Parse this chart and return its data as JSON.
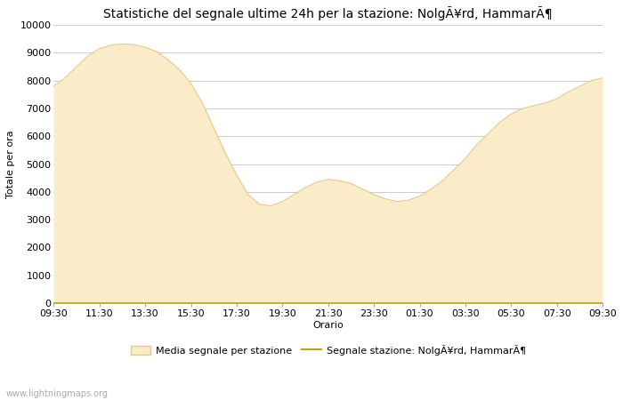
{
  "title": "Statistiche del segnale ultime 24h per la stazione: NolgÃ¥rd, HammarÃ¶",
  "xlabel": "Orario",
  "ylabel": "Totale per ora",
  "ylim": [
    0,
    10000
  ],
  "yticks": [
    0,
    1000,
    2000,
    3000,
    4000,
    5000,
    6000,
    7000,
    8000,
    9000,
    10000
  ],
  "xtick_labels": [
    "09:30",
    "11:30",
    "13:30",
    "15:30",
    "17:30",
    "19:30",
    "21:30",
    "23:30",
    "01:30",
    "03:30",
    "05:30",
    "07:30",
    "09:30"
  ],
  "fill_color": "#FAECC8",
  "fill_edge_color": "#E8C87A",
  "station_line_color": "#C8A000",
  "background_color": "#FFFFFF",
  "grid_color": "#CCCCCC",
  "watermark": "www.lightningmaps.org",
  "legend_fill_label": "Media segnale per stazione",
  "legend_line_label": "Segnale stazione: NolgÃ¥rd, HammarÃ¶",
  "x_values": [
    0,
    1,
    2,
    3,
    4,
    5,
    6,
    7,
    8,
    9,
    10,
    11,
    12,
    13,
    14,
    15,
    16,
    17,
    18,
    19,
    20,
    21,
    22,
    23,
    24,
    25,
    26,
    27,
    28,
    29,
    30,
    31,
    32,
    33,
    34,
    35,
    36,
    37,
    38,
    39,
    40,
    41,
    42,
    43,
    44,
    45,
    46,
    47,
    48
  ],
  "fill_values": [
    7800,
    8100,
    8500,
    8900,
    9150,
    9280,
    9320,
    9300,
    9200,
    9050,
    8750,
    8400,
    7900,
    7200,
    6300,
    5400,
    4600,
    3900,
    3550,
    3500,
    3650,
    3900,
    4150,
    4350,
    4450,
    4400,
    4300,
    4100,
    3900,
    3750,
    3650,
    3700,
    3850,
    4100,
    4400,
    4800,
    5200,
    5700,
    6100,
    6500,
    6800,
    7000,
    7100,
    7200,
    7350,
    7600,
    7800,
    8000,
    8100
  ],
  "station_values": [
    5,
    5,
    5,
    5,
    5,
    5,
    5,
    5,
    5,
    5,
    5,
    5,
    5,
    5,
    5,
    5,
    5,
    5,
    5,
    5,
    5,
    5,
    5,
    5,
    5,
    5,
    5,
    5,
    5,
    5,
    5,
    5,
    5,
    5,
    5,
    5,
    5,
    5,
    5,
    5,
    5,
    5,
    5,
    5,
    5,
    5,
    5,
    5,
    5
  ],
  "title_fontsize": 10,
  "axis_label_fontsize": 8,
  "tick_fontsize": 8,
  "legend_fontsize": 8
}
